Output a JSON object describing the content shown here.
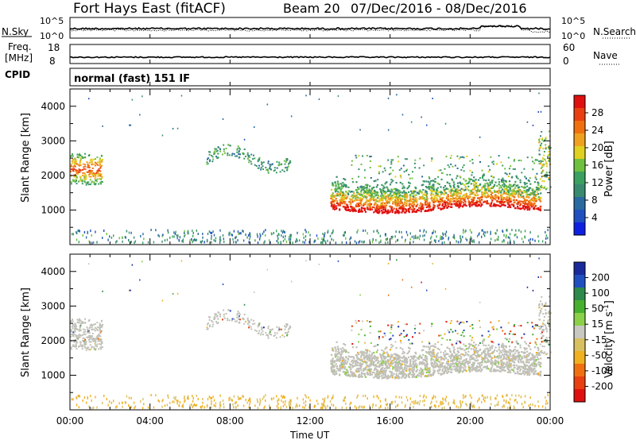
{
  "header": {
    "title": "Fort Hays East (fitACF)",
    "beam": "Beam 20",
    "date_range": "07/Dec/2016 - 08/Dec/2016"
  },
  "noise_panel": {
    "left_label": "N.Sky",
    "right_label": "N.Search",
    "left_ticks": [
      "10^5",
      "10^0"
    ],
    "right_ticks": [
      "10^5",
      "10^0"
    ]
  },
  "freq_panel": {
    "left_label_line1": "Freq.",
    "left_label_line2": "[MHz]",
    "left_ticks": [
      "18",
      "8"
    ],
    "right_label": "Nave",
    "right_ticks": [
      "60",
      "0"
    ],
    "cpid_label": "CPID"
  },
  "cpid_text": "normal (fast) 151 IF",
  "colors": {
    "power_scale": [
      "#1020e0",
      "#2050c0",
      "#2a6aa0",
      "#3a8a70",
      "#3ca060",
      "#70c040",
      "#e0d020",
      "#f0a020",
      "#f07010",
      "#e84010",
      "#e01010"
    ],
    "velocity_scale": [
      "#1a2a9a",
      "#2050c0",
      "#2e8a4a",
      "#48b030",
      "#8ad048",
      "#c8c8c0",
      "#d8c060",
      "#f0b020",
      "#f07010",
      "#e84010",
      "#e01010"
    ],
    "grey_scatter": "#c0c0b8"
  },
  "chart_data": [
    {
      "type": "heatmap",
      "quantity": "Power",
      "ylabel": "Slant Range [km]",
      "colorbar_label": "Power [dB]",
      "colorbar_ticks": [
        "28",
        "24",
        "20",
        "16",
        "12",
        "8",
        "4"
      ],
      "colorbar_range": [
        0,
        32
      ],
      "y_ticks": [
        1000,
        2000,
        3000,
        4000
      ],
      "ylim": [
        0,
        4500
      ],
      "x_ticks": [
        "00:00",
        "04:00",
        "08:00",
        "12:00",
        "16:00",
        "20:00",
        "00:00"
      ],
      "xlim_hours": [
        0,
        24
      ],
      "echo_regions": [
        {
          "t_start": 0.0,
          "t_end": 1.6,
          "r_min": 1700,
          "r_max": 2700
        },
        {
          "t_start": 6.8,
          "t_end": 11.0,
          "r_min": 2100,
          "r_max": 2900
        },
        {
          "t_start": 13.0,
          "t_end": 23.5,
          "r_min": 900,
          "r_max": 2000
        },
        {
          "t_start": 23.5,
          "t_end": 24.0,
          "r_min": 1600,
          "r_max": 3300
        }
      ]
    },
    {
      "type": "heatmap",
      "quantity": "Velocity",
      "ylabel": "Slant Range [km]",
      "xlabel": "Time UT",
      "colorbar_label": "Velocity [m s^-1]",
      "colorbar_ticks": [
        "200",
        "100",
        "50",
        "15",
        "-15",
        "-50",
        "-100",
        "-200"
      ],
      "y_ticks": [
        1000,
        2000,
        3000,
        4000
      ],
      "ylim": [
        0,
        4500
      ],
      "x_ticks": [
        "00:00",
        "04:00",
        "08:00",
        "12:00",
        "16:00",
        "20:00",
        "00:00"
      ],
      "xlim_hours": [
        0,
        24
      ]
    }
  ]
}
